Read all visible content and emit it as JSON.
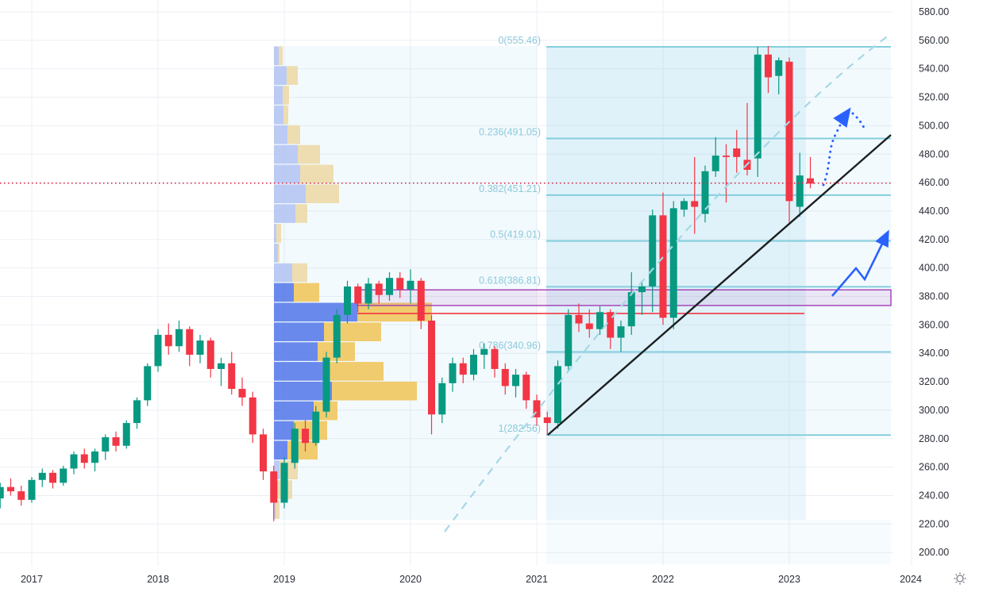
{
  "chart_data": {
    "type": "candlestick",
    "timeframe": "monthly",
    "title": "",
    "ylim": [
      200,
      580
    ],
    "y_step": 20,
    "grid": true,
    "current_price": 459.6,
    "y_axis_labels": [
      "580.00",
      "560.00",
      "540.00",
      "520.00",
      "500.00",
      "480.00",
      "460.00",
      "440.00",
      "420.00",
      "400.00",
      "380.00",
      "360.00",
      "340.00",
      "320.00",
      "300.00",
      "280.00",
      "260.00",
      "240.00",
      "220.00",
      "200.00"
    ],
    "x_axis_labels": [
      "2017",
      "2018",
      "2019",
      "2020",
      "2021",
      "2022",
      "2023",
      "2024"
    ],
    "candles_format": "[month, open, high, low, close]",
    "candles": [
      [
        "2016-10",
        238,
        249,
        231,
        246
      ],
      [
        "2016-11",
        246,
        252,
        240,
        243
      ],
      [
        "2016-12",
        243,
        247,
        233,
        237
      ],
      [
        "2017-01",
        237,
        253,
        235,
        251
      ],
      [
        "2017-02",
        251,
        259,
        246,
        256
      ],
      [
        "2017-03",
        256,
        258,
        245,
        249
      ],
      [
        "2017-04",
        249,
        261,
        247,
        259
      ],
      [
        "2017-05",
        259,
        271,
        255,
        269
      ],
      [
        "2017-06",
        269,
        273,
        259,
        263
      ],
      [
        "2017-07",
        263,
        273,
        257,
        271
      ],
      [
        "2017-08",
        271,
        283,
        265,
        281
      ],
      [
        "2017-09",
        281,
        285,
        271,
        275
      ],
      [
        "2017-10",
        275,
        293,
        273,
        291
      ],
      [
        "2017-11",
        291,
        309,
        287,
        307
      ],
      [
        "2017-12",
        307,
        333,
        303,
        331
      ],
      [
        "2018-01",
        331,
        357,
        327,
        353
      ],
      [
        "2018-02",
        353,
        361,
        339,
        345
      ],
      [
        "2018-03",
        345,
        363,
        341,
        357
      ],
      [
        "2018-04",
        357,
        359,
        331,
        339
      ],
      [
        "2018-05",
        339,
        353,
        333,
        349
      ],
      [
        "2018-06",
        349,
        351,
        323,
        329
      ],
      [
        "2018-07",
        329,
        337,
        317,
        333
      ],
      [
        "2018-08",
        333,
        341,
        311,
        315
      ],
      [
        "2018-09",
        315,
        323,
        303,
        309
      ],
      [
        "2018-10",
        309,
        313,
        277,
        283
      ],
      [
        "2018-11",
        283,
        287,
        251,
        257
      ],
      [
        "2018-12",
        257,
        261,
        222,
        235
      ],
      [
        "2019-01",
        235,
        267,
        231,
        263
      ],
      [
        "2019-02",
        263,
        291,
        259,
        287
      ],
      [
        "2019-03",
        287,
        293,
        271,
        277
      ],
      [
        "2019-04",
        277,
        303,
        275,
        299
      ],
      [
        "2019-05",
        299,
        341,
        295,
        337
      ],
      [
        "2019-06",
        337,
        371,
        333,
        367
      ],
      [
        "2019-07",
        367,
        391,
        361,
        387
      ],
      [
        "2019-08",
        387,
        389,
        369,
        375
      ],
      [
        "2019-09",
        375,
        393,
        371,
        389
      ],
      [
        "2019-10",
        389,
        391,
        375,
        381
      ],
      [
        "2019-11",
        381,
        397,
        377,
        393
      ],
      [
        "2019-12",
        393,
        397,
        379,
        385
      ],
      [
        "2020-01",
        385,
        399,
        375,
        391
      ],
      [
        "2020-02",
        391,
        393,
        357,
        363
      ],
      [
        "2020-03",
        363,
        367,
        283,
        297
      ],
      [
        "2020-04",
        297,
        323,
        291,
        319
      ],
      [
        "2020-05",
        319,
        337,
        313,
        333
      ],
      [
        "2020-06",
        333,
        337,
        319,
        325
      ],
      [
        "2020-07",
        325,
        343,
        321,
        339
      ],
      [
        "2020-08",
        339,
        347,
        329,
        343
      ],
      [
        "2020-09",
        343,
        345,
        323,
        329
      ],
      [
        "2020-10",
        329,
        333,
        311,
        317
      ],
      [
        "2020-11",
        317,
        329,
        309,
        325
      ],
      [
        "2020-12",
        325,
        327,
        301,
        307
      ],
      [
        "2021-01",
        307,
        311,
        289,
        295
      ],
      [
        "2021-02",
        295,
        299,
        282.6,
        291
      ],
      [
        "2021-03",
        291,
        335,
        287,
        331
      ],
      [
        "2021-04",
        331,
        371,
        327,
        367
      ],
      [
        "2021-05",
        367,
        375,
        355,
        361
      ],
      [
        "2021-06",
        361,
        371,
        351,
        357
      ],
      [
        "2021-07",
        357,
        373,
        353,
        369
      ],
      [
        "2021-08",
        369,
        371,
        343,
        351
      ],
      [
        "2021-09",
        351,
        363,
        341,
        359
      ],
      [
        "2021-10",
        359,
        397,
        353,
        383
      ],
      [
        "2021-11",
        383,
        391,
        367,
        387
      ],
      [
        "2021-12",
        387,
        441,
        369,
        437
      ],
      [
        "2022-01",
        437,
        453,
        360,
        365
      ],
      [
        "2022-02",
        365,
        447,
        357,
        442
      ],
      [
        "2022-03",
        441,
        449,
        436,
        447
      ],
      [
        "2022-04",
        447,
        478,
        424,
        443
      ],
      [
        "2022-05",
        438,
        472,
        432,
        468
      ],
      [
        "2022-06",
        468,
        492,
        464,
        479
      ],
      [
        "2022-07",
        479,
        487,
        446,
        478
      ],
      [
        "2022-08",
        484,
        497,
        467,
        478
      ],
      [
        "2022-09",
        476,
        516,
        465,
        469
      ],
      [
        "2022-10",
        477,
        555.5,
        464,
        550
      ],
      [
        "2022-11",
        550,
        556,
        523,
        534
      ],
      [
        "2022-12",
        535,
        548,
        522,
        546
      ],
      [
        "2023-01",
        545,
        548,
        432,
        447
      ],
      [
        "2023-02",
        443,
        481,
        436,
        465
      ],
      [
        "2023-03",
        463,
        478,
        456,
        459.3
      ]
    ],
    "fibonacci": {
      "levels": [
        {
          "label": "0(555.46)",
          "price": 555.46
        },
        {
          "label": "0.236(491.05)",
          "price": 491.05
        },
        {
          "label": "0.382(451.21)",
          "price": 451.21
        },
        {
          "label": "0.5(419.01)",
          "price": 419.01
        },
        {
          "label": "0.618(386.81)",
          "price": 386.81
        },
        {
          "label": "0.786(340.96)",
          "price": 340.96
        },
        {
          "label": "1(282.56)",
          "price": 282.56
        }
      ]
    },
    "volume_profile_format": "[blue_end_x, gold_end_x, vivid]",
    "volume_profile": [
      [
        351,
        356,
        0
      ],
      [
        361,
        375,
        0
      ],
      [
        356,
        364,
        0
      ],
      [
        357,
        363,
        0
      ],
      [
        362,
        378,
        0
      ],
      [
        375,
        403,
        0
      ],
      [
        378,
        420,
        0
      ],
      [
        385,
        427,
        0
      ],
      [
        372,
        387,
        0
      ],
      [
        348,
        354,
        0
      ],
      [
        350,
        352,
        0
      ],
      [
        368,
        387,
        0
      ],
      [
        370,
        402,
        1
      ],
      [
        450,
        544,
        1
      ],
      [
        408,
        480,
        1
      ],
      [
        400,
        447,
        1
      ],
      [
        408,
        483,
        1
      ],
      [
        418,
        525,
        1
      ],
      [
        395,
        425,
        1
      ],
      [
        370,
        412,
        1
      ],
      [
        362,
        400,
        1
      ],
      [
        352,
        375,
        0
      ],
      [
        350,
        368,
        0
      ],
      [
        347,
        352,
        0
      ]
    ],
    "levels": {
      "resistance_zone": {
        "price_top": 384.6,
        "price_bottom": 373.6
      },
      "poc_line_price": 368
    }
  },
  "annotations": {
    "trendline_black": "ascending support line from 2021 low to 490 area",
    "trendline_dashed": "dashed cyan accelerated trend curve",
    "arrow_solid": "blue zigzag projection arrow up to ~420",
    "arrow_dotted": "blue dotted bounce arrow near 500"
  },
  "axes": {
    "price_axis_side": "right",
    "time_axis_side": "bottom",
    "settings_icon": "gear-sun-icon"
  },
  "colors": {
    "up": "#089981",
    "down": "#f23645",
    "grid": "#eceff5",
    "axis_text": "#2a2e39",
    "fib_line": "#85cede",
    "fib_label": "#8cc9da",
    "tint": "rgba(140,205,232,0.18)",
    "tint_light": "rgba(140,205,232,0.10)",
    "zone_stroke": "#a03cb4",
    "zone_fill": "rgba(160,60,180,0.10)",
    "poc_red": "#f23645",
    "trend_black": "#1c2022",
    "trend_dashed": "#a5d8e6",
    "arrow_blue": "#2962ff",
    "price_dotted": "#e0294a",
    "vp_blue": "#5b7cea",
    "vp_gold": "#f0c75e",
    "vp_blue_pale": "#b6c5f3",
    "vp_gold_pale": "#ecd9a8",
    "icon_grey": "#787b86"
  }
}
